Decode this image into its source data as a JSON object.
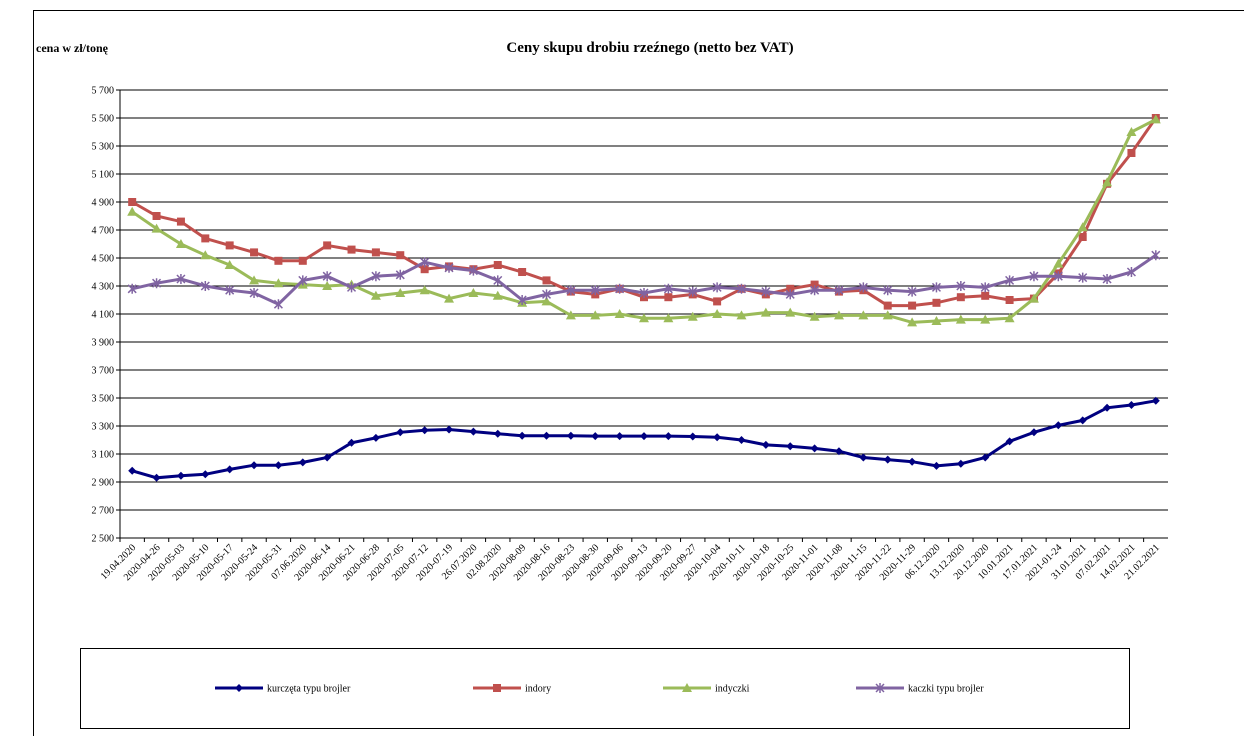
{
  "chart_data": {
    "type": "line",
    "title": "Ceny skupu drobiu rzeźnego (netto bez VAT)",
    "y_label": "cena w zł/tonę",
    "categories": [
      "19.04.2020",
      "2020-04-26",
      "2020-05-03",
      "2020-05-10",
      "2020-05-17",
      "2020-05-24",
      "2020-05-31",
      "07.06.2020",
      "2020-06-14",
      "2020-06-21",
      "2020-06-28",
      "2020-07-05",
      "2020-07-12",
      "2020-07-19",
      "26.07.2020",
      "02.08.2020",
      "2020-08-09",
      "2020-08-16",
      "2020-08-23",
      "2020-08-30",
      "2020-09-06",
      "2020-09-13",
      "2020-09-20",
      "2020-09-27",
      "2020-10-04",
      "2020-10-11",
      "2020-10-18",
      "2020-10-25",
      "2020-11-01",
      "2020-11-08",
      "2020-11-15",
      "2020-11-22",
      "2020-11-29",
      "06.12.2020",
      "13.12.2020",
      "20.12.2020",
      "10.01.2021",
      "17.01.2021",
      "2021-01-24",
      "31.01.2021",
      "07.02.2021",
      "14.02.2021",
      "21.02.2021"
    ],
    "series": [
      {
        "name": "kurczęta typu brojler",
        "color": "#000080",
        "marker": "diamond",
        "values": [
          2980,
          2930,
          2945,
          2955,
          2990,
          3020,
          3020,
          3040,
          3075,
          3180,
          3215,
          3255,
          3270,
          3275,
          3260,
          3245,
          3230,
          3230,
          3230,
          3228,
          3228,
          3228,
          3228,
          3225,
          3220,
          3200,
          3165,
          3155,
          3140,
          3120,
          3075,
          3060,
          3045,
          3015,
          3030,
          3075,
          3190,
          3255,
          3305,
          3340,
          3430,
          3450,
          3480
        ]
      },
      {
        "name": "indory",
        "color": "#c0504d",
        "marker": "square",
        "values": [
          4900,
          4800,
          4760,
          4640,
          4590,
          4540,
          4480,
          4480,
          4590,
          4560,
          4540,
          4520,
          4420,
          4440,
          4420,
          4450,
          4400,
          4340,
          4260,
          4240,
          4280,
          4220,
          4220,
          4240,
          4190,
          4280,
          4240,
          4280,
          4310,
          4260,
          4270,
          4160,
          4160,
          4180,
          4220,
          4230,
          4200,
          4210,
          4390,
          4650,
          5030,
          5250,
          5500
        ]
      },
      {
        "name": "indyczki",
        "color": "#9bbb59",
        "marker": "triangle",
        "values": [
          4830,
          4710,
          4600,
          4520,
          4450,
          4340,
          4320,
          4310,
          4300,
          4310,
          4230,
          4250,
          4270,
          4210,
          4250,
          4230,
          4180,
          4190,
          4090,
          4090,
          4100,
          4070,
          4070,
          4080,
          4100,
          4090,
          4110,
          4110,
          4080,
          4090,
          4090,
          4090,
          4040,
          4050,
          4060,
          4060,
          4070,
          4210,
          4460,
          4720,
          5040,
          5400,
          5490
        ]
      },
      {
        "name": "kaczki typu brojler",
        "color": "#8064a2",
        "marker": "cross",
        "values": [
          4280,
          4320,
          4350,
          4300,
          4270,
          4250,
          4170,
          4340,
          4370,
          4290,
          4370,
          4380,
          4470,
          4430,
          4410,
          4340,
          4200,
          4240,
          4270,
          4270,
          4280,
          4250,
          4280,
          4260,
          4290,
          4280,
          4260,
          4240,
          4270,
          4270,
          4290,
          4270,
          4260,
          4290,
          4300,
          4290,
          4340,
          4370,
          4370,
          4360,
          4350,
          4400,
          4520
        ]
      }
    ],
    "ylim": [
      2500,
      5700
    ],
    "yticks": [
      {
        "value": 2500,
        "label": "2 500"
      },
      {
        "value": 2700,
        "label": "2 700"
      },
      {
        "value": 2900,
        "label": "2 900"
      },
      {
        "value": 3100,
        "label": "3 100"
      },
      {
        "value": 3300,
        "label": "3 300"
      },
      {
        "value": 3500,
        "label": "3 500"
      },
      {
        "value": 3700,
        "label": "3 700"
      },
      {
        "value": 3900,
        "label": "3 900"
      },
      {
        "value": 4100,
        "label": "4 100"
      },
      {
        "value": 4300,
        "label": "4 300"
      },
      {
        "value": 4500,
        "label": "4 500"
      },
      {
        "value": 4700,
        "label": "4 700"
      },
      {
        "value": 4900,
        "label": "4 900"
      },
      {
        "value": 5100,
        "label": "5 100"
      },
      {
        "value": 5300,
        "label": "5 300"
      },
      {
        "value": 5500,
        "label": "5 500"
      },
      {
        "value": 5700,
        "label": "5 700"
      }
    ],
    "grid": true,
    "legend": "bottom"
  }
}
